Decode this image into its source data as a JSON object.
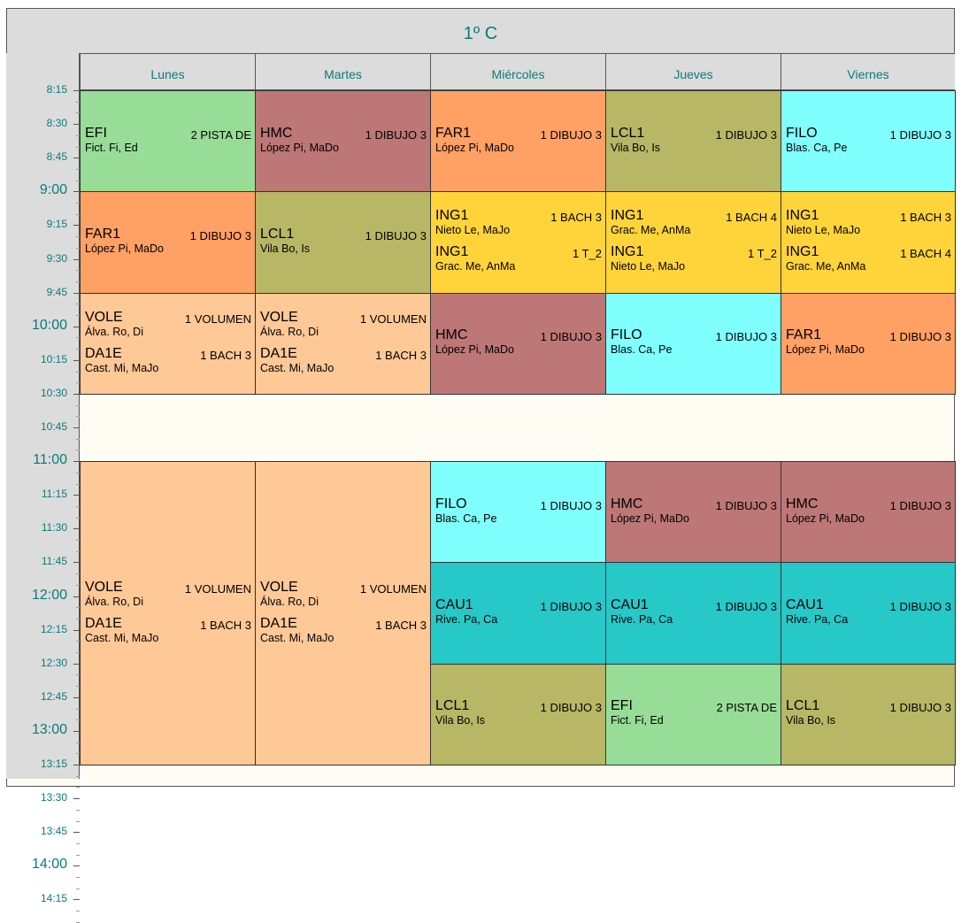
{
  "title": "1º C",
  "days": [
    "Lunes",
    "Martes",
    "Miércoles",
    "Jueves",
    "Viernes"
  ],
  "time_labels": [
    {
      "text": "8:15",
      "size": "sm"
    },
    {
      "text": "8:30",
      "size": "sm"
    },
    {
      "text": "8:45",
      "size": "sm"
    },
    {
      "text": "9:00",
      "size": "lg"
    },
    {
      "text": "9:15",
      "size": "sm"
    },
    {
      "text": "9:30",
      "size": "sm"
    },
    {
      "text": "9:45",
      "size": "sm"
    },
    {
      "text": "10:00",
      "size": "lg"
    },
    {
      "text": "10:15",
      "size": "sm"
    },
    {
      "text": "10:30",
      "size": "sm"
    },
    {
      "text": "10:45",
      "size": "sm"
    },
    {
      "text": "11:00",
      "size": "lg"
    },
    {
      "text": "11:15",
      "size": "sm"
    },
    {
      "text": "11:30",
      "size": "sm"
    },
    {
      "text": "11:45",
      "size": "sm"
    },
    {
      "text": "12:00",
      "size": "lg"
    },
    {
      "text": "12:15",
      "size": "sm"
    },
    {
      "text": "12:30",
      "size": "sm"
    },
    {
      "text": "12:45",
      "size": "sm"
    },
    {
      "text": "13:00",
      "size": "lg"
    },
    {
      "text": "13:15",
      "size": "sm"
    },
    {
      "text": "13:30",
      "size": "sm"
    },
    {
      "text": "13:45",
      "size": "sm"
    },
    {
      "text": "14:00",
      "size": "lg"
    },
    {
      "text": "14:15",
      "size": "sm"
    }
  ],
  "colors": {
    "EFI": "#97dd97",
    "HMC": "#bd7777",
    "FAR1": "#ffa064",
    "LCL1": "#b7b766",
    "FILO": "#80ffff",
    "ING1": "#ffd33a",
    "VOLE": "#ffc896",
    "CAU1": "#26c8c8"
  },
  "blocks": [
    {
      "day": 0,
      "start": 1,
      "end": 4,
      "color": "EFI",
      "entries": [
        {
          "subject": "EFI",
          "room": "2 PISTA DE",
          "teacher": "Fict. Fi, Ed"
        }
      ]
    },
    {
      "day": 1,
      "start": 1,
      "end": 4,
      "color": "HMC",
      "entries": [
        {
          "subject": "HMC",
          "room": "1 DIBUJO 3",
          "teacher": "López Pi, MaDo"
        }
      ]
    },
    {
      "day": 2,
      "start": 1,
      "end": 4,
      "color": "FAR1",
      "entries": [
        {
          "subject": "FAR1",
          "room": "1 DIBUJO 3",
          "teacher": "López Pi, MaDo"
        }
      ]
    },
    {
      "day": 3,
      "start": 1,
      "end": 4,
      "color": "LCL1",
      "entries": [
        {
          "subject": "LCL1",
          "room": "1 DIBUJO 3",
          "teacher": "Vila Bo, Is"
        }
      ]
    },
    {
      "day": 4,
      "start": 1,
      "end": 4,
      "color": "FILO",
      "entries": [
        {
          "subject": "FILO",
          "room": "1 DIBUJO 3",
          "teacher": "Blas. Ca, Pe"
        }
      ]
    },
    {
      "day": 0,
      "start": 4,
      "end": 7,
      "color": "FAR1",
      "entries": [
        {
          "subject": "FAR1",
          "room": "1 DIBUJO 3",
          "teacher": "López Pi, MaDo"
        }
      ]
    },
    {
      "day": 1,
      "start": 4,
      "end": 7,
      "color": "LCL1",
      "entries": [
        {
          "subject": "LCL1",
          "room": "1 DIBUJO 3",
          "teacher": "Vila Bo, Is"
        }
      ]
    },
    {
      "day": 2,
      "start": 4,
      "end": 7,
      "color": "ING1",
      "entries": [
        {
          "subject": "ING1",
          "room": "1 BACH 3",
          "teacher": "Nieto Le, MaJo"
        },
        {
          "subject": "ING1",
          "room": "1 T_2",
          "teacher": "Grac. Me, AnMa"
        }
      ]
    },
    {
      "day": 3,
      "start": 4,
      "end": 7,
      "color": "ING1",
      "entries": [
        {
          "subject": "ING1",
          "room": "1 BACH 4",
          "teacher": "Grac. Me, AnMa"
        },
        {
          "subject": "ING1",
          "room": "1 T_2",
          "teacher": "Nieto Le, MaJo"
        }
      ]
    },
    {
      "day": 4,
      "start": 4,
      "end": 7,
      "color": "ING1",
      "entries": [
        {
          "subject": "ING1",
          "room": "1 BACH 3",
          "teacher": "Nieto Le, MaJo"
        },
        {
          "subject": "ING1",
          "room": "1 BACH 4",
          "teacher": "Grac. Me, AnMa"
        }
      ]
    },
    {
      "day": 0,
      "start": 7,
      "end": 10,
      "color": "VOLE",
      "entries": [
        {
          "subject": "VOLE",
          "room": "1 VOLUMEN",
          "teacher": "Álva. Ro, Di"
        },
        {
          "subject": "DA1E",
          "room": "1 BACH 3",
          "teacher": "Cast. Mi, MaJo"
        }
      ]
    },
    {
      "day": 1,
      "start": 7,
      "end": 10,
      "color": "VOLE",
      "entries": [
        {
          "subject": "VOLE",
          "room": "1 VOLUMEN",
          "teacher": "Álva. Ro, Di"
        },
        {
          "subject": "DA1E",
          "room": "1 BACH 3",
          "teacher": "Cast. Mi, MaJo"
        }
      ]
    },
    {
      "day": 2,
      "start": 7,
      "end": 10,
      "color": "HMC",
      "entries": [
        {
          "subject": "HMC",
          "room": "1 DIBUJO 3",
          "teacher": "López Pi, MaDo"
        }
      ]
    },
    {
      "day": 3,
      "start": 7,
      "end": 10,
      "color": "FILO",
      "entries": [
        {
          "subject": "FILO",
          "room": "1 DIBUJO 3",
          "teacher": "Blas. Ca, Pe"
        }
      ]
    },
    {
      "day": 4,
      "start": 7,
      "end": 10,
      "color": "FAR1",
      "entries": [
        {
          "subject": "FAR1",
          "room": "1 DIBUJO 3",
          "teacher": "López Pi, MaDo"
        }
      ]
    },
    {
      "day": 0,
      "start": 12,
      "end": 21,
      "color": "VOLE",
      "entries": [
        {
          "subject": "VOLE",
          "room": "1 VOLUMEN",
          "teacher": "Álva. Ro, Di"
        },
        {
          "subject": "DA1E",
          "room": "1 BACH 3",
          "teacher": "Cast. Mi, MaJo"
        }
      ]
    },
    {
      "day": 1,
      "start": 12,
      "end": 21,
      "color": "VOLE",
      "entries": [
        {
          "subject": "VOLE",
          "room": "1 VOLUMEN",
          "teacher": "Álva. Ro, Di"
        },
        {
          "subject": "DA1E",
          "room": "1 BACH 3",
          "teacher": "Cast. Mi, MaJo"
        }
      ]
    },
    {
      "day": 2,
      "start": 12,
      "end": 15,
      "color": "FILO",
      "entries": [
        {
          "subject": "FILO",
          "room": "1 DIBUJO 3",
          "teacher": "Blas. Ca, Pe"
        }
      ]
    },
    {
      "day": 3,
      "start": 12,
      "end": 15,
      "color": "HMC",
      "entries": [
        {
          "subject": "HMC",
          "room": "1 DIBUJO 3",
          "teacher": "López Pi, MaDo"
        }
      ]
    },
    {
      "day": 4,
      "start": 12,
      "end": 15,
      "color": "HMC",
      "entries": [
        {
          "subject": "HMC",
          "room": "1 DIBUJO 3",
          "teacher": "López Pi, MaDo"
        }
      ]
    },
    {
      "day": 2,
      "start": 15,
      "end": 18,
      "color": "CAU1",
      "entries": [
        {
          "subject": "CAU1",
          "room": "1 DIBUJO 3",
          "teacher": "Rive. Pa, Ca"
        }
      ]
    },
    {
      "day": 3,
      "start": 15,
      "end": 18,
      "color": "CAU1",
      "entries": [
        {
          "subject": "CAU1",
          "room": "1 DIBUJO 3",
          "teacher": "Rive. Pa, Ca"
        }
      ]
    },
    {
      "day": 4,
      "start": 15,
      "end": 18,
      "color": "CAU1",
      "entries": [
        {
          "subject": "CAU1",
          "room": "1 DIBUJO 3",
          "teacher": "Rive. Pa, Ca"
        }
      ]
    },
    {
      "day": 2,
      "start": 18,
      "end": 21,
      "color": "LCL1",
      "entries": [
        {
          "subject": "LCL1",
          "room": "1 DIBUJO 3",
          "teacher": "Vila Bo, Is"
        }
      ]
    },
    {
      "day": 3,
      "start": 18,
      "end": 21,
      "color": "EFI",
      "entries": [
        {
          "subject": "EFI",
          "room": "2 PISTA DE",
          "teacher": "Fict. Fi, Ed"
        }
      ]
    },
    {
      "day": 4,
      "start": 18,
      "end": 21,
      "color": "LCL1",
      "entries": [
        {
          "subject": "LCL1",
          "room": "1 DIBUJO 3",
          "teacher": "Vila Bo, Is"
        }
      ]
    }
  ]
}
